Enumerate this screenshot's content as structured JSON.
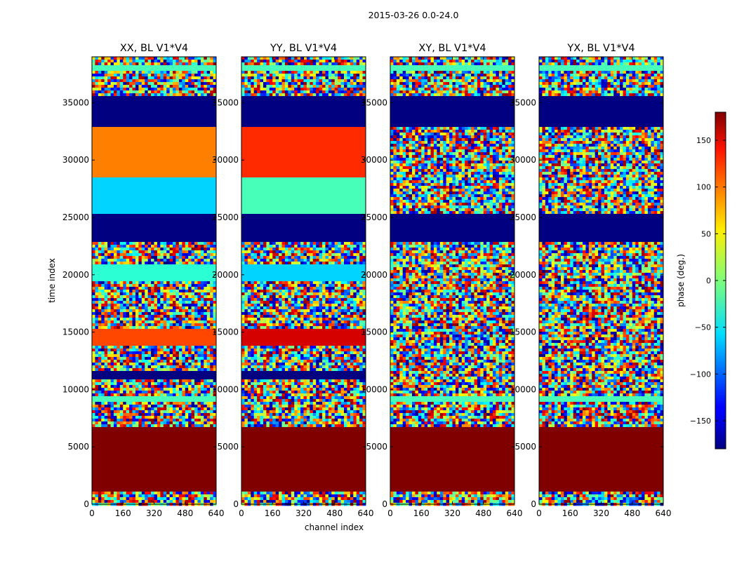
{
  "figure": {
    "suptitle": "2015-03-26 0.0-24.0",
    "xlabel": "channel index",
    "ylabel": "time index"
  },
  "chart_data": [
    {
      "type": "heatmap",
      "title": "XX, BL V1*V4",
      "xlim": [
        0,
        640
      ],
      "ylim": [
        0,
        39000
      ],
      "xticks": [
        0,
        160,
        320,
        480,
        640
      ],
      "yticks": [
        0,
        5000,
        10000,
        15000,
        20000,
        25000,
        30000,
        35000
      ],
      "bands": [
        {
          "y": [
            0,
            1200
          ],
          "value": "noise"
        },
        {
          "y": [
            1200,
            6700
          ],
          "value": 180
        },
        {
          "y": [
            6700,
            9000
          ],
          "value": "noise"
        },
        {
          "y": [
            9000,
            9300
          ],
          "value": -20
        },
        {
          "y": [
            9300,
            11000
          ],
          "value": "noise"
        },
        {
          "y": [
            11000,
            11700
          ],
          "value": -180
        },
        {
          "y": [
            11700,
            13900
          ],
          "value": "noise"
        },
        {
          "y": [
            13900,
            15400
          ],
          "value": 110
        },
        {
          "y": [
            15400,
            19500
          ],
          "value": "noise"
        },
        {
          "y": [
            19500,
            21000
          ],
          "value": -30
        },
        {
          "y": [
            21000,
            22800
          ],
          "value": "noise"
        },
        {
          "y": [
            22800,
            25300
          ],
          "value": -180
        },
        {
          "y": [
            25300,
            28500
          ],
          "value": -60
        },
        {
          "y": [
            28500,
            32800
          ],
          "value": 90
        },
        {
          "y": [
            32800,
            35500
          ],
          "value": -180
        },
        {
          "y": [
            35500,
            37800
          ],
          "value": "noise"
        },
        {
          "y": [
            37800,
            38200
          ],
          "value": -20
        },
        {
          "y": [
            38200,
            39000
          ],
          "value": "noise"
        }
      ]
    },
    {
      "type": "heatmap",
      "title": "YY, BL V1*V4",
      "xlim": [
        0,
        640
      ],
      "ylim": [
        0,
        39000
      ],
      "xticks": [
        0,
        160,
        320,
        480,
        640
      ],
      "yticks": [
        0,
        5000,
        10000,
        15000,
        20000,
        25000,
        30000,
        35000
      ],
      "bands": [
        {
          "y": [
            0,
            1200
          ],
          "value": "noise"
        },
        {
          "y": [
            1200,
            6700
          ],
          "value": 180
        },
        {
          "y": [
            6700,
            11000
          ],
          "value": "noise"
        },
        {
          "y": [
            11000,
            11700
          ],
          "value": -180
        },
        {
          "y": [
            11700,
            13900
          ],
          "value": "noise"
        },
        {
          "y": [
            13900,
            15400
          ],
          "value": 150
        },
        {
          "y": [
            15400,
            19500
          ],
          "value": "noise"
        },
        {
          "y": [
            19500,
            21000
          ],
          "value": -60
        },
        {
          "y": [
            21000,
            22800
          ],
          "value": "noise"
        },
        {
          "y": [
            22800,
            25300
          ],
          "value": -180
        },
        {
          "y": [
            25300,
            28500
          ],
          "value": -20
        },
        {
          "y": [
            28500,
            32800
          ],
          "value": 120
        },
        {
          "y": [
            32800,
            35500
          ],
          "value": -180
        },
        {
          "y": [
            35500,
            37800
          ],
          "value": "noise"
        },
        {
          "y": [
            37800,
            38200
          ],
          "value": -20
        },
        {
          "y": [
            38200,
            39000
          ],
          "value": "noise"
        }
      ]
    },
    {
      "type": "heatmap",
      "title": "XY, BL V1*V4",
      "xlim": [
        0,
        640
      ],
      "ylim": [
        0,
        39000
      ],
      "xticks": [
        0,
        160,
        320,
        480,
        640
      ],
      "yticks": [
        0,
        5000,
        10000,
        15000,
        20000,
        25000,
        30000,
        35000
      ],
      "bands": [
        {
          "y": [
            0,
            1200
          ],
          "value": "noise"
        },
        {
          "y": [
            1200,
            6700
          ],
          "value": 180
        },
        {
          "y": [
            6700,
            9000
          ],
          "value": "noise"
        },
        {
          "y": [
            9000,
            9300
          ],
          "value": -20
        },
        {
          "y": [
            9300,
            22800
          ],
          "value": "noise"
        },
        {
          "y": [
            22800,
            25300
          ],
          "value": -180
        },
        {
          "y": [
            25300,
            32800
          ],
          "value": "noise"
        },
        {
          "y": [
            32800,
            35500
          ],
          "value": -180
        },
        {
          "y": [
            35500,
            37800
          ],
          "value": "noise"
        },
        {
          "y": [
            37800,
            38200
          ],
          "value": -20
        },
        {
          "y": [
            38200,
            39000
          ],
          "value": "noise"
        }
      ]
    },
    {
      "type": "heatmap",
      "title": "YX, BL V1*V4",
      "xlim": [
        0,
        640
      ],
      "ylim": [
        0,
        39000
      ],
      "xticks": [
        0,
        160,
        320,
        480,
        640
      ],
      "yticks": [
        0,
        5000,
        10000,
        15000,
        20000,
        25000,
        30000,
        35000
      ],
      "bands": [
        {
          "y": [
            0,
            1200
          ],
          "value": "noise"
        },
        {
          "y": [
            1200,
            6700
          ],
          "value": 180
        },
        {
          "y": [
            6700,
            9000
          ],
          "value": "noise"
        },
        {
          "y": [
            9000,
            9300
          ],
          "value": -20
        },
        {
          "y": [
            9300,
            22800
          ],
          "value": "noise"
        },
        {
          "y": [
            22800,
            25300
          ],
          "value": -180
        },
        {
          "y": [
            25300,
            32800
          ],
          "value": "noise"
        },
        {
          "y": [
            32800,
            35500
          ],
          "value": -180
        },
        {
          "y": [
            35500,
            37800
          ],
          "value": "noise"
        },
        {
          "y": [
            37800,
            38200
          ],
          "value": -20
        },
        {
          "y": [
            38200,
            39000
          ],
          "value": "noise"
        }
      ]
    }
  ],
  "colorbar": {
    "label": "phase (deg.)",
    "range": [
      -180,
      180
    ],
    "ticks": [
      -150,
      -100,
      -50,
      0,
      50,
      100,
      150
    ],
    "colormap": "jet"
  }
}
